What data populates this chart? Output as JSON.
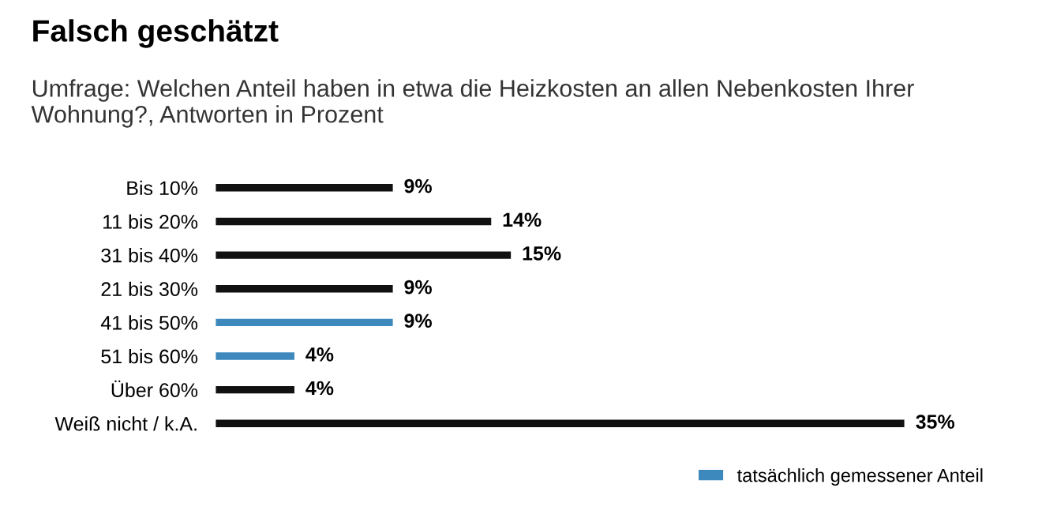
{
  "chart_data": {
    "type": "bar",
    "orientation": "horizontal",
    "title": "Falsch geschätzt",
    "subtitle": "Umfrage: Welchen Anteil haben in etwa die Heizkosten an allen Nebenkosten Ihrer Wohnung?, Antworten in Prozent",
    "categories": [
      "Bis 10%",
      "11 bis 20%",
      "31 bis 40%",
      "21 bis 30%",
      "41 bis 50%",
      "51 bis 60%",
      "Über 60%",
      "Weiß nicht / k.A."
    ],
    "series": [
      {
        "color": "#111111",
        "values": [
          9,
          14,
          15,
          9,
          null,
          null,
          4,
          35
        ],
        "value_labels": [
          "9%",
          "14%",
          "15%",
          "9%",
          null,
          null,
          "4%",
          "35%"
        ]
      },
      {
        "name": "tatsächlich gemessener Anteil",
        "color": "#3d88bd",
        "values": [
          null,
          null,
          null,
          null,
          9,
          4,
          null,
          null
        ],
        "value_labels": [
          null,
          null,
          null,
          null,
          "9%",
          "4%",
          null,
          null
        ]
      }
    ],
    "xlim": [
      0,
      35
    ],
    "tick_labels": "y",
    "grid": false,
    "legend": "bottom right"
  }
}
